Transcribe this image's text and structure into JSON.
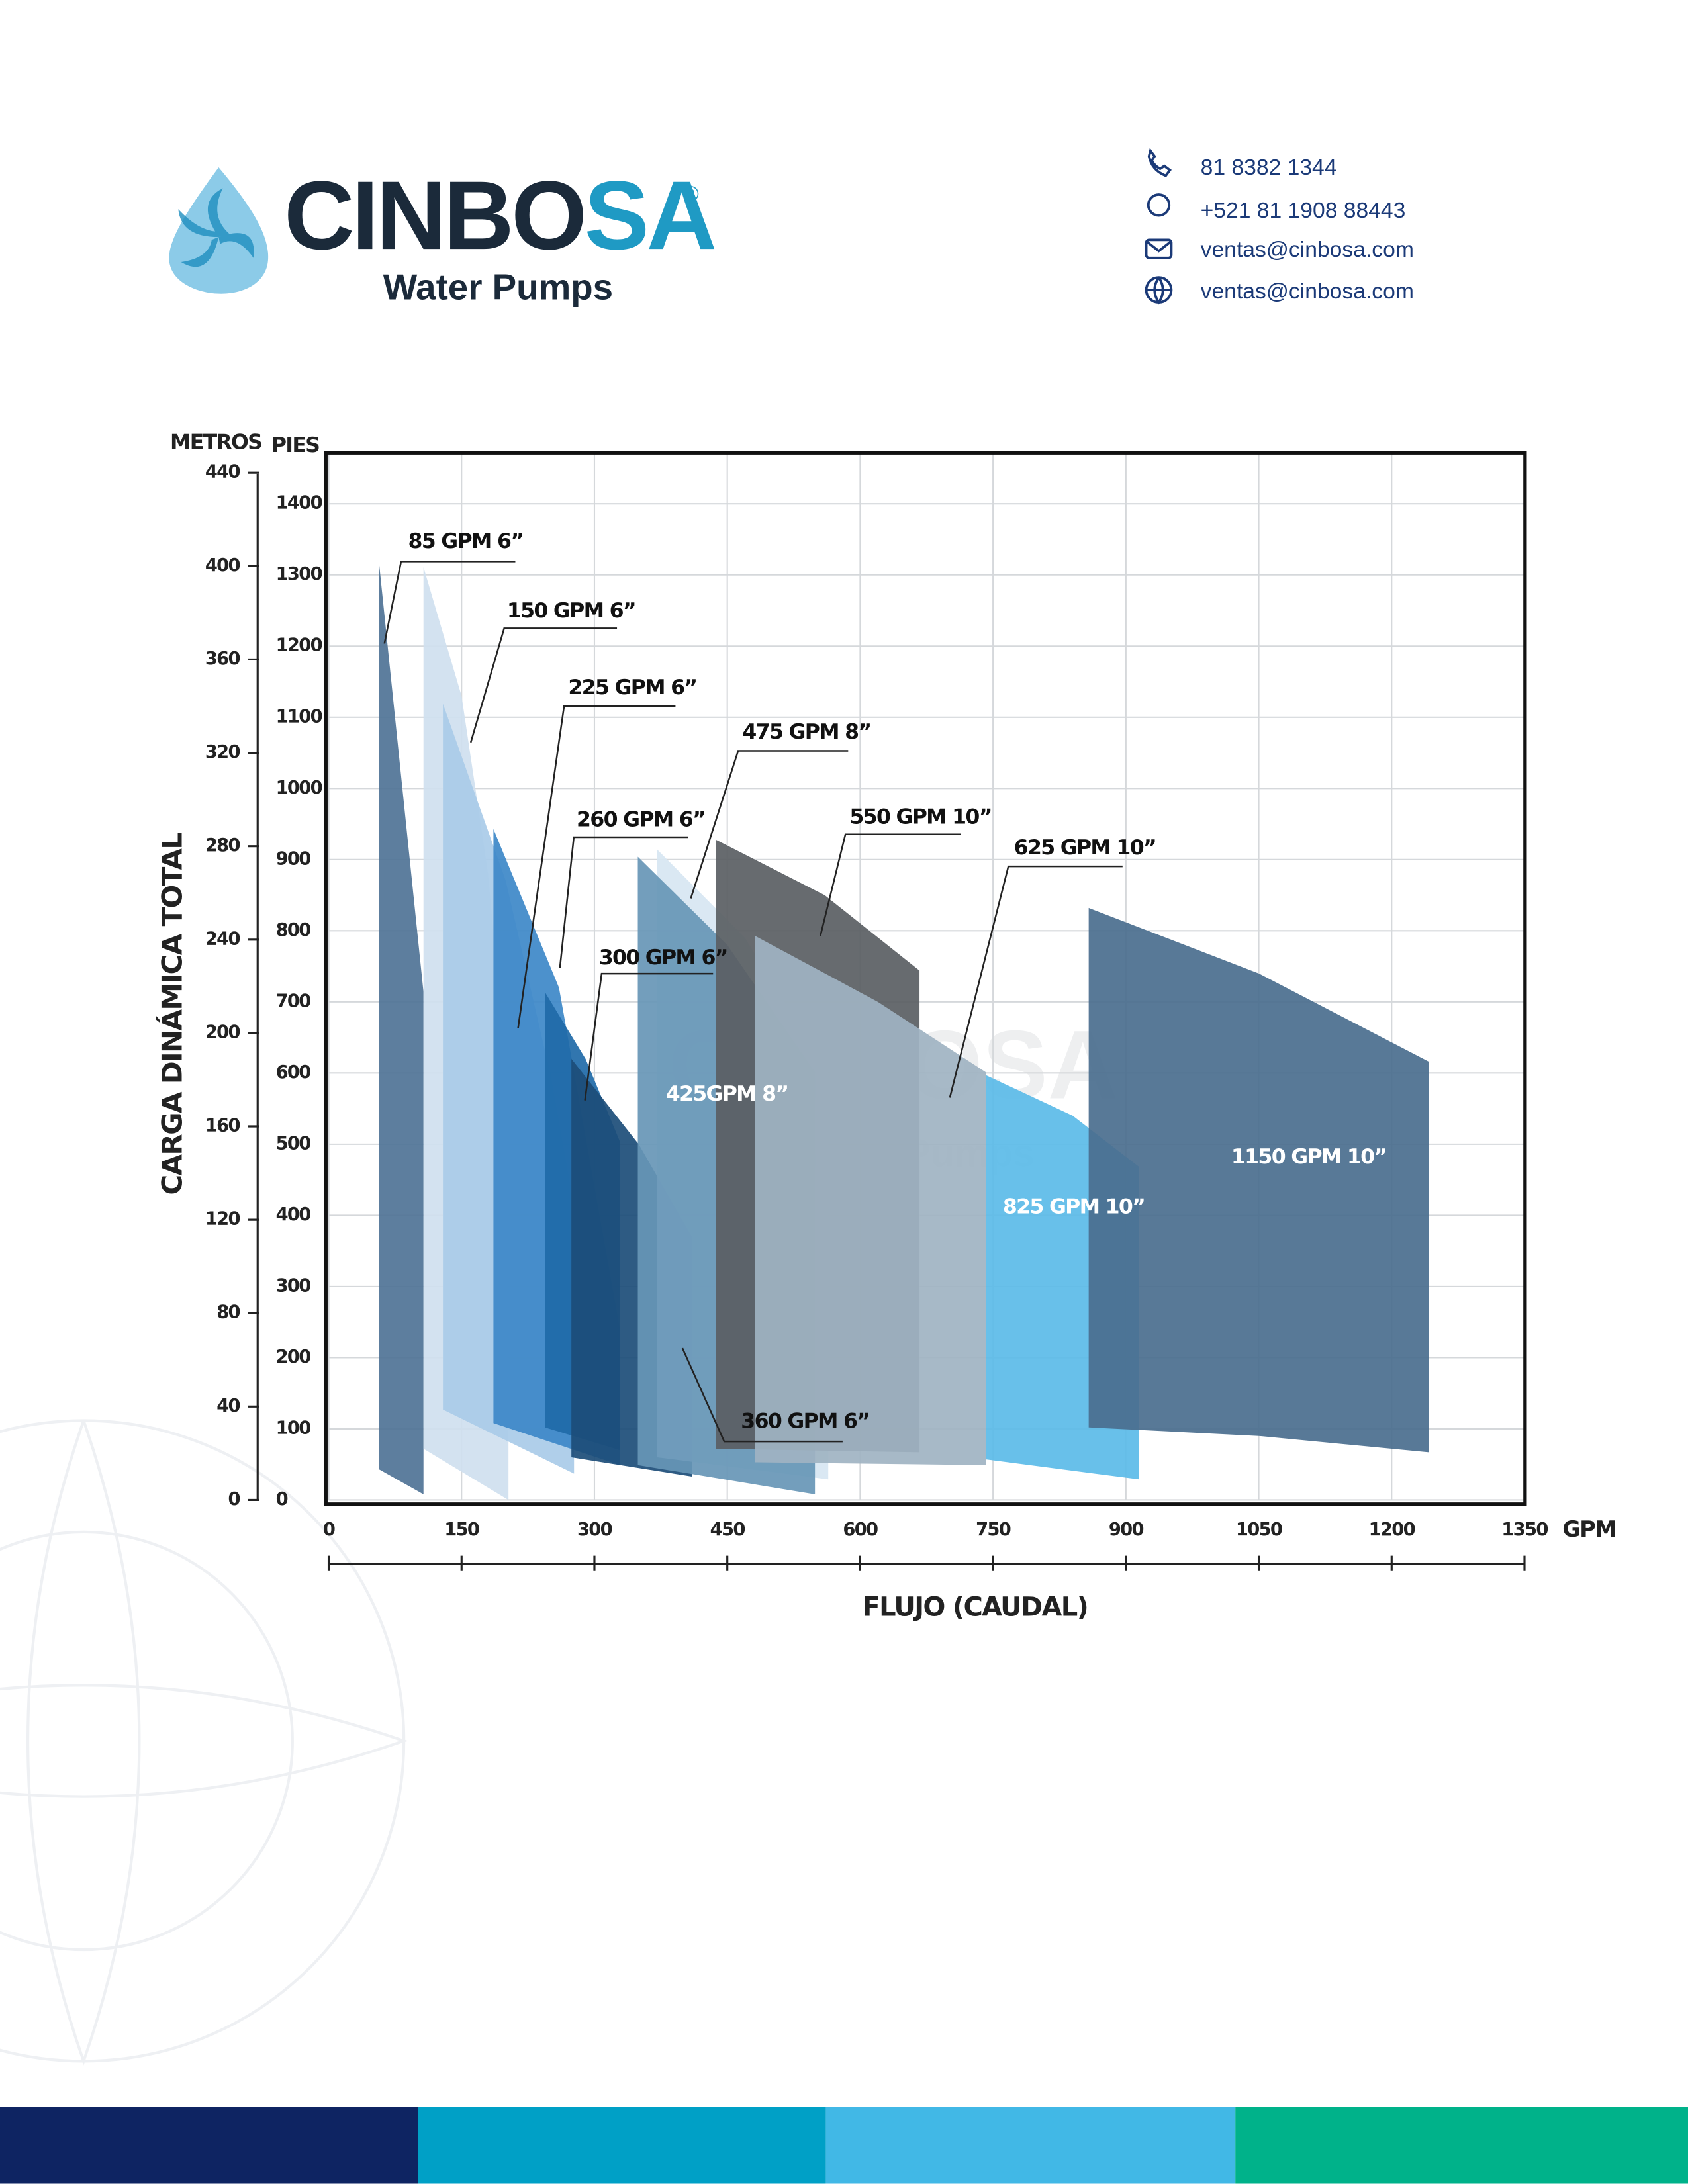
{
  "header": {
    "brand_main": "CINBO",
    "brand_accent": "SA",
    "registered": "®",
    "tagline": "Water Pumps",
    "contacts": [
      "81 8382 1344",
      "+521 81 1908 88443",
      "ventas@cinbosa.com",
      "ventas@cinbosa.com"
    ]
  },
  "chart_data": {
    "type": "region",
    "yaxis_title": "METROS",
    "y2axis_title": "PIES",
    "y_label": "CARGA DINÁMICA TOTAL",
    "x_label": "FLUJO (CAUDAL)",
    "x_unit": "GPM",
    "xlim": [
      0,
      1350
    ],
    "xticks": [
      0,
      150,
      300,
      450,
      600,
      750,
      900,
      1050,
      1200,
      1350
    ],
    "ylim": [
      0,
      448
    ],
    "yticks": [
      0,
      40,
      80,
      120,
      160,
      200,
      240,
      280,
      320,
      360,
      400,
      440
    ],
    "y2lim": [
      0,
      1470
    ],
    "y2ticks": [
      0,
      100,
      200,
      300,
      400,
      500,
      600,
      700,
      800,
      900,
      1000,
      1100,
      1200,
      1300,
      1400
    ],
    "grid": true,
    "series": [
      {
        "name": "85 GPM 6”",
        "color": "#4f7396",
        "axis": "y2",
        "x": [
          57,
          57,
          107,
          107
        ],
        "values": [
          43,
          1315,
          714,
          8
        ]
      },
      {
        "name": "150 GPM 6”",
        "color": "#cfe0ef",
        "axis": "y2",
        "x": [
          107,
          107,
          150,
          180,
          203,
          203
        ],
        "values": [
          72,
          1311,
          1130,
          880,
          562,
          0
        ]
      },
      {
        "name": "225 GPM 6”",
        "color": "#a9cbe8",
        "axis": "y2",
        "x": [
          129,
          129,
          200,
          250,
          277,
          277
        ],
        "values": [
          127,
          1119,
          870,
          600,
          411,
          37
        ]
      },
      {
        "name": "260 GPM 6”",
        "color": "#3d88c8",
        "axis": "y2",
        "x": [
          186,
          186,
          260,
          329,
          329
        ],
        "values": [
          108,
          943,
          720,
          239,
          49
        ]
      },
      {
        "name": "300 GPM 6”",
        "color": "#1f6aa8",
        "axis": "y2",
        "x": [
          244,
          244,
          290,
          329,
          329
        ],
        "values": [
          102,
          714,
          620,
          503,
          70
        ]
      },
      {
        "name": "360 GPM 6”",
        "color": "#1c4d78",
        "axis": "y2",
        "x": [
          274,
          274,
          350,
          410,
          410
        ],
        "values": [
          60,
          620,
          500,
          370,
          33
        ]
      },
      {
        "name": "475 GPM 8”",
        "color": "#d7e6f2",
        "axis": "y2",
        "x": [
          371,
          371,
          470,
          564,
          564
        ],
        "values": [
          60,
          914,
          790,
          601,
          29
        ]
      },
      {
        "name": "425GPM 8”",
        "color": "#6796b6",
        "axis": "y2",
        "x": [
          349,
          349,
          450,
          549,
          549
        ],
        "values": [
          49,
          904,
          780,
          601,
          8
        ]
      },
      {
        "name": "550 GPM 10”",
        "color": "#5a5e63",
        "axis": "y2",
        "x": [
          437,
          437,
          560,
          667,
          667
        ],
        "values": [
          72,
          928,
          850,
          744,
          67
        ]
      },
      {
        "name": "625 GPM 10”",
        "color": "#9fb3c2",
        "axis": "y2",
        "x": [
          481,
          481,
          620,
          742,
          742
        ],
        "values": [
          53,
          793,
          700,
          601,
          49
        ]
      },
      {
        "name": "825 GPM 10”",
        "color": "#5bbbe8",
        "axis": "y2",
        "x": [
          742,
          742,
          840,
          915,
          915
        ],
        "values": [
          57,
          597,
          540,
          468,
          29
        ]
      },
      {
        "name": "1150 GPM 10”",
        "color": "#4a6e8e",
        "axis": "y2",
        "x": [
          858,
          858,
          1050,
          1242,
          1242,
          1050
        ],
        "values": [
          102,
          832,
          740,
          616,
          67,
          90
        ]
      }
    ]
  }
}
